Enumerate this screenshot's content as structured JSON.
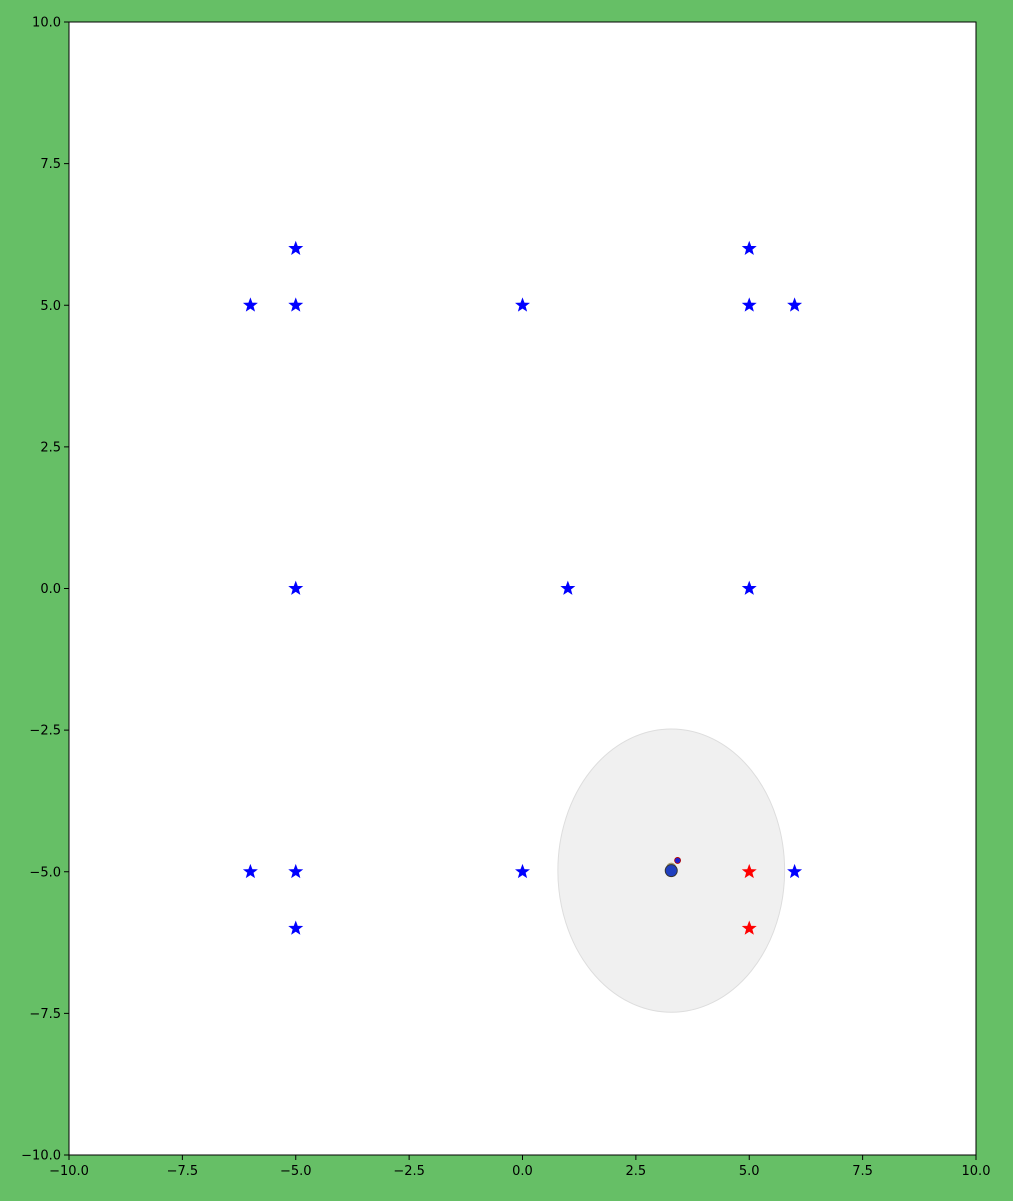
{
  "colors": {
    "figure_background": "#66bf66",
    "axes_background": "#ffffff",
    "landmark": "#0000ff",
    "landmark_highlighted": "#ff0000",
    "ellipse_fill": "#f0f0f0",
    "ellipse_stroke": "#dddddd",
    "robot_fill": "#1f3fbf",
    "robot_stroke": "#333333",
    "small_dot": "#2020d0",
    "small_dot_stroke": "#b00000"
  },
  "chart_data": {
    "type": "scatter",
    "title": "",
    "xlabel": "",
    "ylabel": "",
    "xlim": [
      -10,
      10
    ],
    "ylim": [
      -10,
      10
    ],
    "grid": false,
    "xticks": [
      "−10.0",
      "−7.5",
      "−5.0",
      "−2.5",
      "0.0",
      "2.5",
      "5.0",
      "7.5",
      "10.0"
    ],
    "yticks": [
      "−10.0",
      "−7.5",
      "−5.0",
      "−2.5",
      "0.0",
      "2.5",
      "5.0",
      "7.5",
      "10.0"
    ],
    "landmarks": [
      {
        "x": -5,
        "y": 6,
        "highlighted": false
      },
      {
        "x": -6,
        "y": 5,
        "highlighted": false
      },
      {
        "x": -5,
        "y": 5,
        "highlighted": false
      },
      {
        "x": 0,
        "y": 5,
        "highlighted": false
      },
      {
        "x": 5,
        "y": 6,
        "highlighted": false
      },
      {
        "x": 5,
        "y": 5,
        "highlighted": false
      },
      {
        "x": 6,
        "y": 5,
        "highlighted": false
      },
      {
        "x": -5,
        "y": 0,
        "highlighted": false
      },
      {
        "x": 1,
        "y": 0,
        "highlighted": false
      },
      {
        "x": 5,
        "y": 0,
        "highlighted": false
      },
      {
        "x": -6,
        "y": -5,
        "highlighted": false
      },
      {
        "x": -5,
        "y": -5,
        "highlighted": false
      },
      {
        "x": 0,
        "y": -5,
        "highlighted": false
      },
      {
        "x": 5,
        "y": -5,
        "highlighted": true
      },
      {
        "x": 6,
        "y": -5,
        "highlighted": false
      },
      {
        "x": -5,
        "y": -6,
        "highlighted": false
      },
      {
        "x": 5,
        "y": -6,
        "highlighted": true
      }
    ],
    "uncertainty_ellipse": {
      "cx": 3.28,
      "cy": -4.98,
      "rx": 2.5,
      "ry": 2.5
    },
    "estimated_position": {
      "x": 3.28,
      "y": -4.98
    },
    "true_position": {
      "x": 3.42,
      "y": -4.8
    }
  }
}
